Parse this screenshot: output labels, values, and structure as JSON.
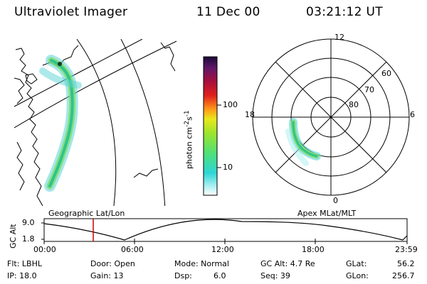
{
  "header": {
    "title": "Ultraviolet Imager",
    "date": "11 Dec 00",
    "time": "03:21:12 UT"
  },
  "colorbar": {
    "unit": "photon cm",
    "unit_sup1": "-2",
    "unit_mid": "s",
    "unit_sup2": "-1",
    "ticks": [
      "100",
      "10"
    ]
  },
  "polar": {
    "mlt_labels": [
      "12",
      "18",
      "6",
      "0"
    ],
    "lat_labels": [
      "60",
      "70",
      "80"
    ]
  },
  "panels": {
    "left_caption": "Geographic Lat/Lon",
    "right_caption": "Apex MLat/MLT"
  },
  "altplot": {
    "ylabel": "GC Alt",
    "ytick_high": "9.0",
    "ytick_low": "1.8",
    "xticks": [
      "00:00",
      "06:00",
      "12:00",
      "18:00",
      "23:59"
    ]
  },
  "info": {
    "flt": "Flt: LBHL",
    "ip": "IP: 18.0",
    "door": "Door: Open",
    "gain": "Gain: 13",
    "mode": "Mode: Normal",
    "dsp_label": "Dsp:",
    "dsp_value": "6.0",
    "gcalt": "GC Alt: 4.7 Re",
    "seq": "Seq: 39",
    "glat_label": "GLat:",
    "glat_value": "56.2",
    "glon_label": "GLon:",
    "glon_value": "256.7"
  },
  "colors": {
    "marker_line": "#cc0000",
    "aurora_core": "#2ec48a",
    "aurora_mid": "#7fdc6a",
    "aurora_edge": "#5bd3d6"
  }
}
